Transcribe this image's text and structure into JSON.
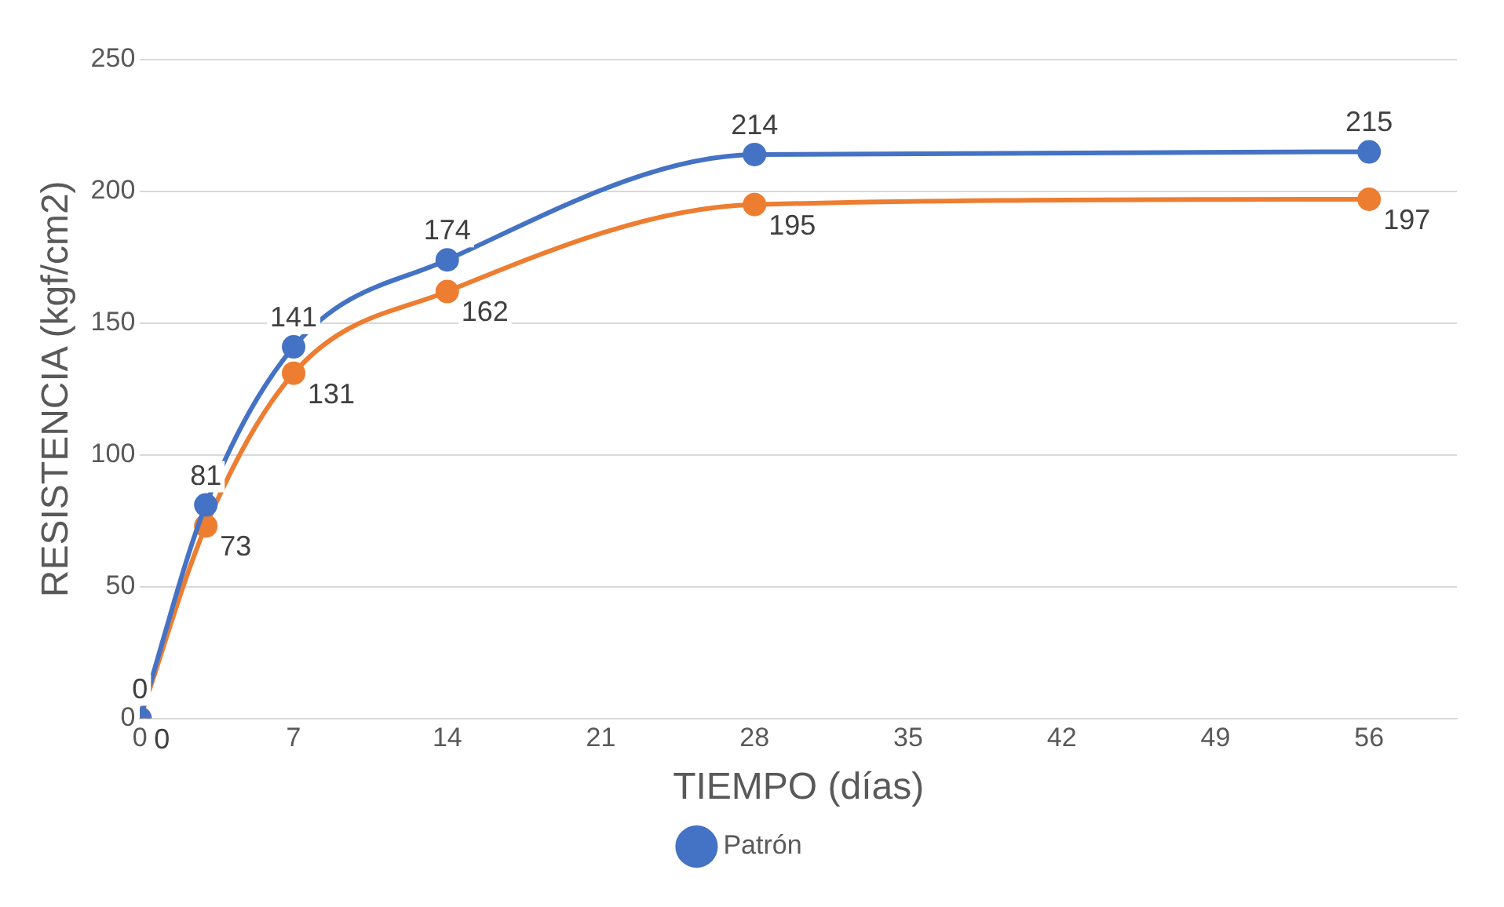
{
  "chart_data": {
    "type": "line",
    "xlabel": "TIEMPO (días)",
    "ylabel": "RESISTENCIA (kgf/cm2)",
    "xlim": [
      0,
      60
    ],
    "xticks": [
      0,
      7,
      14,
      21,
      28,
      35,
      42,
      49,
      56
    ],
    "ylim": [
      0,
      250
    ],
    "yticks": [
      0,
      50,
      100,
      150,
      200,
      250
    ],
    "grid": "y",
    "legend": "bottom",
    "marker": "circle",
    "data_labels": true,
    "series": [
      {
        "name": "Patrón",
        "color": "#4472c4",
        "x": [
          0,
          3,
          7,
          14,
          28,
          56
        ],
        "values": [
          0,
          81,
          141,
          174,
          214,
          215
        ]
      },
      {
        "color": "#ed7d31",
        "x": [
          0,
          3,
          7,
          14,
          28,
          56
        ],
        "values": [
          0,
          73,
          131,
          162,
          195,
          197
        ]
      }
    ]
  }
}
